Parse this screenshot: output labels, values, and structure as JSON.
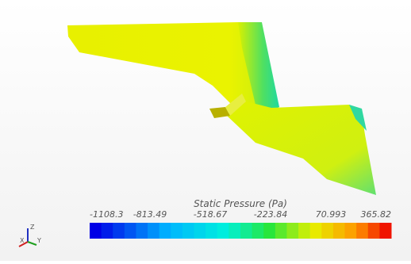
{
  "colorbar": {
    "title": "Static Pressure (Pa)",
    "ticks": [
      -1108.3,
      -813.49,
      -518.67,
      -223.84,
      70.993,
      365.82
    ]
  },
  "axes_triad": {
    "z": "Z",
    "x": "X",
    "y": "Y"
  }
}
